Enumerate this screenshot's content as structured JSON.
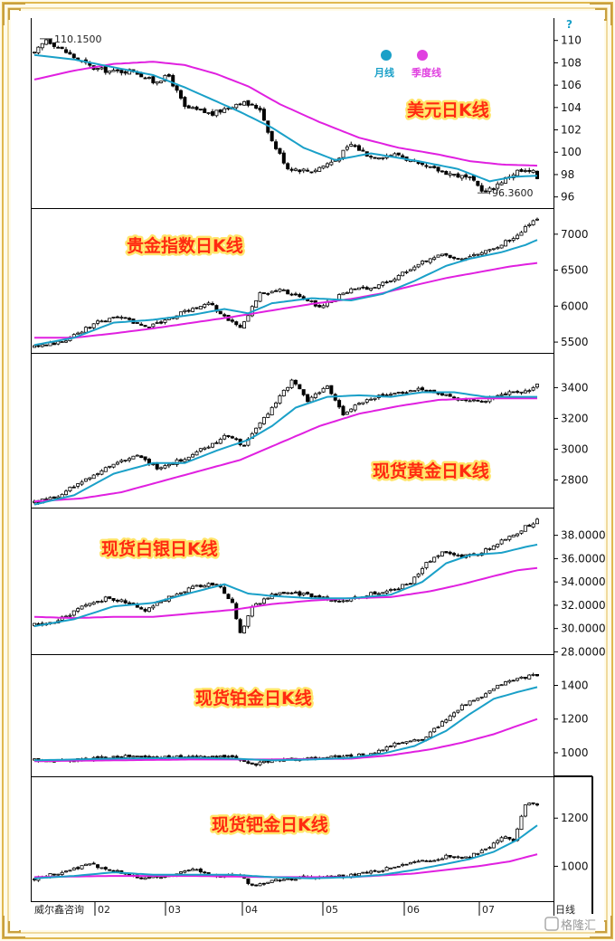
{
  "meta": {
    "footer_brand": "威尔鑫咨询",
    "period_label": "日线",
    "watermark": "格隆汇"
  },
  "legend": {
    "items": [
      {
        "label": "月线",
        "color": "#1aa0c8"
      },
      {
        "label": "季度线",
        "color": "#e040e0"
      }
    ],
    "help_glyph": "?"
  },
  "x_axis": {
    "labels": [
      "02",
      "03",
      "04",
      "05",
      "06",
      "07"
    ]
  },
  "chart_data": [
    {
      "type": "candlestick",
      "title": "美元日K线",
      "series_names": [
        "月线",
        "季度线"
      ],
      "ylim": [
        95,
        112
      ],
      "yticks": [
        96,
        98,
        100,
        102,
        104,
        106,
        108,
        110
      ],
      "ytick_labels": [
        "96",
        "98",
        "100",
        "102",
        "104",
        "106",
        "108",
        "110"
      ],
      "annotations": {
        "high": "110.1500",
        "low": "96.3600"
      },
      "anchors": [
        [
          0,
          108.8
        ],
        [
          3,
          110.1
        ],
        [
          10,
          108.5
        ],
        [
          15,
          107.5
        ],
        [
          20,
          107.2
        ],
        [
          25,
          107.3
        ],
        [
          30,
          106.3
        ],
        [
          34,
          106.8
        ],
        [
          38,
          104.0
        ],
        [
          45,
          103.4
        ],
        [
          52,
          104.5
        ],
        [
          57,
          103.9
        ],
        [
          60,
          101.0
        ],
        [
          64,
          98.6
        ],
        [
          70,
          98.3
        ],
        [
          76,
          99.3
        ],
        [
          80,
          100.7
        ],
        [
          85,
          99.6
        ],
        [
          92,
          99.8
        ],
        [
          97,
          98.8
        ],
        [
          103,
          98.3
        ],
        [
          110,
          97.6
        ],
        [
          114,
          96.4
        ],
        [
          118,
          97.4
        ],
        [
          122,
          98.3
        ],
        [
          126,
          98.2
        ],
        [
          127,
          97.7
        ]
      ],
      "ma1": [
        [
          0,
          108.7
        ],
        [
          10,
          108.3
        ],
        [
          20,
          107.6
        ],
        [
          30,
          106.9
        ],
        [
          38,
          105.8
        ],
        [
          45,
          104.7
        ],
        [
          52,
          103.6
        ],
        [
          60,
          102.2
        ],
        [
          68,
          100.4
        ],
        [
          76,
          99.3
        ],
        [
          85,
          99.9
        ],
        [
          97,
          99.2
        ],
        [
          107,
          98.5
        ],
        [
          115,
          97.4
        ],
        [
          121,
          97.8
        ],
        [
          127,
          97.9
        ]
      ],
      "ma2": [
        [
          0,
          106.5
        ],
        [
          10,
          107.3
        ],
        [
          20,
          107.9
        ],
        [
          30,
          108.1
        ],
        [
          38,
          107.8
        ],
        [
          46,
          107.0
        ],
        [
          54,
          105.9
        ],
        [
          62,
          104.3
        ],
        [
          72,
          102.7
        ],
        [
          82,
          101.3
        ],
        [
          92,
          100.4
        ],
        [
          102,
          99.8
        ],
        [
          110,
          99.2
        ],
        [
          118,
          98.9
        ],
        [
          127,
          98.8
        ]
      ]
    },
    {
      "type": "candlestick",
      "title": "贵金指数日K线",
      "series_names": [
        "月线",
        "季度线"
      ],
      "ylim": [
        5350,
        7350
      ],
      "yticks": [
        5500,
        6000,
        6500,
        7000
      ],
      "ytick_labels": [
        "5500",
        "6000",
        "6500",
        "7000"
      ],
      "anchors": [
        [
          0,
          5430
        ],
        [
          8,
          5520
        ],
        [
          15,
          5760
        ],
        [
          22,
          5850
        ],
        [
          28,
          5710
        ],
        [
          33,
          5800
        ],
        [
          38,
          5920
        ],
        [
          44,
          6050
        ],
        [
          48,
          5850
        ],
        [
          52,
          5700
        ],
        [
          57,
          6170
        ],
        [
          62,
          6220
        ],
        [
          68,
          6120
        ],
        [
          72,
          5990
        ],
        [
          79,
          6210
        ],
        [
          85,
          6260
        ],
        [
          90,
          6350
        ],
        [
          96,
          6560
        ],
        [
          102,
          6720
        ],
        [
          107,
          6650
        ],
        [
          112,
          6740
        ],
        [
          118,
          6850
        ],
        [
          122,
          7000
        ],
        [
          126,
          7180
        ],
        [
          127,
          7210
        ]
      ],
      "ma1": [
        [
          0,
          5460
        ],
        [
          10,
          5560
        ],
        [
          20,
          5770
        ],
        [
          30,
          5810
        ],
        [
          40,
          5880
        ],
        [
          48,
          5960
        ],
        [
          54,
          5900
        ],
        [
          60,
          6040
        ],
        [
          70,
          6110
        ],
        [
          80,
          6080
        ],
        [
          88,
          6170
        ],
        [
          96,
          6350
        ],
        [
          104,
          6560
        ],
        [
          110,
          6660
        ],
        [
          118,
          6750
        ],
        [
          124,
          6850
        ],
        [
          127,
          6920
        ]
      ],
      "ma2": [
        [
          0,
          5560
        ],
        [
          10,
          5560
        ],
        [
          20,
          5620
        ],
        [
          30,
          5690
        ],
        [
          40,
          5770
        ],
        [
          50,
          5850
        ],
        [
          60,
          5940
        ],
        [
          70,
          6030
        ],
        [
          80,
          6100
        ],
        [
          88,
          6180
        ],
        [
          96,
          6290
        ],
        [
          104,
          6390
        ],
        [
          112,
          6470
        ],
        [
          120,
          6550
        ],
        [
          127,
          6600
        ]
      ]
    },
    {
      "type": "candlestick",
      "title": "现货黄金日K线",
      "series_names": [
        "月线",
        "季度线"
      ],
      "ylim": [
        2620,
        3620
      ],
      "yticks": [
        2800,
        3000,
        3200,
        3400
      ],
      "ytick_labels": [
        "2800",
        "3000",
        "3200",
        "3400"
      ],
      "anchors": [
        [
          0,
          2650
        ],
        [
          6,
          2700
        ],
        [
          13,
          2800
        ],
        [
          20,
          2910
        ],
        [
          26,
          2950
        ],
        [
          31,
          2880
        ],
        [
          37,
          2930
        ],
        [
          43,
          3010
        ],
        [
          49,
          3090
        ],
        [
          53,
          3020
        ],
        [
          57,
          3170
        ],
        [
          61,
          3300
        ],
        [
          65,
          3450
        ],
        [
          69,
          3320
        ],
        [
          74,
          3400
        ],
        [
          78,
          3230
        ],
        [
          84,
          3330
        ],
        [
          90,
          3350
        ],
        [
          97,
          3390
        ],
        [
          103,
          3360
        ],
        [
          108,
          3320
        ],
        [
          113,
          3310
        ],
        [
          119,
          3360
        ],
        [
          124,
          3370
        ],
        [
          127,
          3420
        ]
      ],
      "ma1": [
        [
          0,
          2640
        ],
        [
          10,
          2700
        ],
        [
          20,
          2840
        ],
        [
          30,
          2910
        ],
        [
          38,
          2910
        ],
        [
          46,
          2990
        ],
        [
          54,
          3060
        ],
        [
          60,
          3150
        ],
        [
          66,
          3270
        ],
        [
          74,
          3340
        ],
        [
          82,
          3350
        ],
        [
          90,
          3340
        ],
        [
          98,
          3370
        ],
        [
          106,
          3370
        ],
        [
          114,
          3340
        ],
        [
          122,
          3340
        ],
        [
          127,
          3340
        ]
      ],
      "ma2": [
        [
          0,
          2660
        ],
        [
          12,
          2680
        ],
        [
          22,
          2720
        ],
        [
          32,
          2790
        ],
        [
          42,
          2860
        ],
        [
          52,
          2930
        ],
        [
          62,
          3040
        ],
        [
          72,
          3150
        ],
        [
          82,
          3230
        ],
        [
          92,
          3280
        ],
        [
          102,
          3320
        ],
        [
          112,
          3330
        ],
        [
          127,
          3330
        ]
      ]
    },
    {
      "type": "candlestick",
      "title": "现货白银日K线",
      "series_names": [
        "月线",
        "季度线"
      ],
      "ylim": [
        27.8,
        40.3
      ],
      "yticks": [
        28,
        30,
        32,
        34,
        36,
        38
      ],
      "ytick_labels": [
        "28.0000",
        "30.0000",
        "32.0000",
        "34.0000",
        "36.0000",
        "38.0000"
      ],
      "anchors": [
        [
          0,
          30.3
        ],
        [
          6,
          30.7
        ],
        [
          12,
          31.8
        ],
        [
          18,
          32.6
        ],
        [
          23,
          32.3
        ],
        [
          28,
          31.6
        ],
        [
          32,
          32.4
        ],
        [
          36,
          33.0
        ],
        [
          41,
          33.6
        ],
        [
          46,
          33.9
        ],
        [
          50,
          32.3
        ],
        [
          52,
          29.6
        ],
        [
          55,
          31.8
        ],
        [
          60,
          32.9
        ],
        [
          66,
          33.0
        ],
        [
          72,
          32.7
        ],
        [
          78,
          32.3
        ],
        [
          84,
          32.9
        ],
        [
          90,
          33.2
        ],
        [
          95,
          34.0
        ],
        [
          99,
          35.6
        ],
        [
          103,
          36.6
        ],
        [
          108,
          36.2
        ],
        [
          113,
          36.5
        ],
        [
          117,
          37.3
        ],
        [
          121,
          38.0
        ],
        [
          124,
          38.7
        ],
        [
          127,
          39.3
        ]
      ],
      "ma1": [
        [
          0,
          30.2
        ],
        [
          10,
          30.8
        ],
        [
          20,
          31.9
        ],
        [
          30,
          32.2
        ],
        [
          40,
          33.1
        ],
        [
          48,
          33.8
        ],
        [
          54,
          33.0
        ],
        [
          60,
          32.8
        ],
        [
          70,
          32.6
        ],
        [
          80,
          32.6
        ],
        [
          90,
          32.9
        ],
        [
          98,
          34.0
        ],
        [
          104,
          35.6
        ],
        [
          110,
          36.3
        ],
        [
          118,
          36.5
        ],
        [
          124,
          37.0
        ],
        [
          127,
          37.2
        ]
      ],
      "ma2": [
        [
          0,
          31.0
        ],
        [
          10,
          30.9
        ],
        [
          20,
          31.0
        ],
        [
          30,
          31.0
        ],
        [
          40,
          31.3
        ],
        [
          50,
          31.6
        ],
        [
          60,
          32.1
        ],
        [
          70,
          32.4
        ],
        [
          80,
          32.6
        ],
        [
          90,
          32.7
        ],
        [
          100,
          33.2
        ],
        [
          108,
          33.8
        ],
        [
          116,
          34.5
        ],
        [
          122,
          35.0
        ],
        [
          127,
          35.2
        ]
      ]
    },
    {
      "type": "candlestick",
      "title": "现货铂金日K线",
      "series_names": [
        "月线",
        "季度线"
      ],
      "ylim": [
        860,
        1580
      ],
      "yticks": [
        1000,
        1200,
        1400
      ],
      "ytick_labels": [
        "1000",
        "1200",
        "1400"
      ],
      "anchors": [
        [
          0,
          955
        ],
        [
          10,
          955
        ],
        [
          20,
          980
        ],
        [
          30,
          975
        ],
        [
          40,
          975
        ],
        [
          48,
          975
        ],
        [
          52,
          960
        ],
        [
          55,
          930
        ],
        [
          62,
          960
        ],
        [
          70,
          965
        ],
        [
          78,
          980
        ],
        [
          85,
          990
        ],
        [
          92,
          1060
        ],
        [
          98,
          1080
        ],
        [
          103,
          1180
        ],
        [
          108,
          1280
        ],
        [
          113,
          1330
        ],
        [
          118,
          1410
        ],
        [
          122,
          1440
        ],
        [
          126,
          1460
        ],
        [
          127,
          1450
        ]
      ],
      "ma1": [
        [
          0,
          955
        ],
        [
          20,
          965
        ],
        [
          40,
          970
        ],
        [
          50,
          965
        ],
        [
          60,
          955
        ],
        [
          70,
          960
        ],
        [
          80,
          970
        ],
        [
          88,
          995
        ],
        [
          96,
          1040
        ],
        [
          104,
          1130
        ],
        [
          110,
          1230
        ],
        [
          116,
          1320
        ],
        [
          122,
          1360
        ],
        [
          127,
          1390
        ]
      ],
      "ma2": [
        [
          0,
          950
        ],
        [
          20,
          955
        ],
        [
          40,
          960
        ],
        [
          60,
          960
        ],
        [
          80,
          965
        ],
        [
          90,
          985
        ],
        [
          100,
          1020
        ],
        [
          108,
          1060
        ],
        [
          116,
          1110
        ],
        [
          122,
          1160
        ],
        [
          127,
          1200
        ]
      ]
    },
    {
      "type": "candlestick",
      "title": "现货钯金日K线",
      "series_names": [
        "月线",
        "季度线"
      ],
      "ylim": [
        855,
        1370
      ],
      "yticks": [
        1000,
        1200
      ],
      "ytick_labels": [
        "1000",
        "1200"
      ],
      "anchors": [
        [
          0,
          950
        ],
        [
          8,
          980
        ],
        [
          14,
          1010
        ],
        [
          20,
          980
        ],
        [
          28,
          950
        ],
        [
          34,
          960
        ],
        [
          40,
          990
        ],
        [
          46,
          960
        ],
        [
          52,
          960
        ],
        [
          55,
          920
        ],
        [
          62,
          945
        ],
        [
          70,
          955
        ],
        [
          78,
          960
        ],
        [
          86,
          980
        ],
        [
          92,
          1000
        ],
        [
          98,
          1020
        ],
        [
          104,
          1040
        ],
        [
          110,
          1040
        ],
        [
          115,
          1080
        ],
        [
          118,
          1120
        ],
        [
          121,
          1110
        ],
        [
          124,
          1260
        ],
        [
          127,
          1260
        ]
      ],
      "ma1": [
        [
          0,
          950
        ],
        [
          10,
          960
        ],
        [
          20,
          975
        ],
        [
          30,
          965
        ],
        [
          40,
          965
        ],
        [
          50,
          965
        ],
        [
          60,
          955
        ],
        [
          70,
          950
        ],
        [
          80,
          955
        ],
        [
          88,
          965
        ],
        [
          96,
          985
        ],
        [
          104,
          1010
        ],
        [
          110,
          1030
        ],
        [
          116,
          1060
        ],
        [
          122,
          1110
        ],
        [
          127,
          1170
        ]
      ],
      "ma2": [
        [
          0,
          955
        ],
        [
          20,
          960
        ],
        [
          40,
          960
        ],
        [
          60,
          955
        ],
        [
          80,
          955
        ],
        [
          96,
          970
        ],
        [
          104,
          985
        ],
        [
          112,
          1000
        ],
        [
          120,
          1020
        ],
        [
          127,
          1050
        ]
      ]
    }
  ]
}
